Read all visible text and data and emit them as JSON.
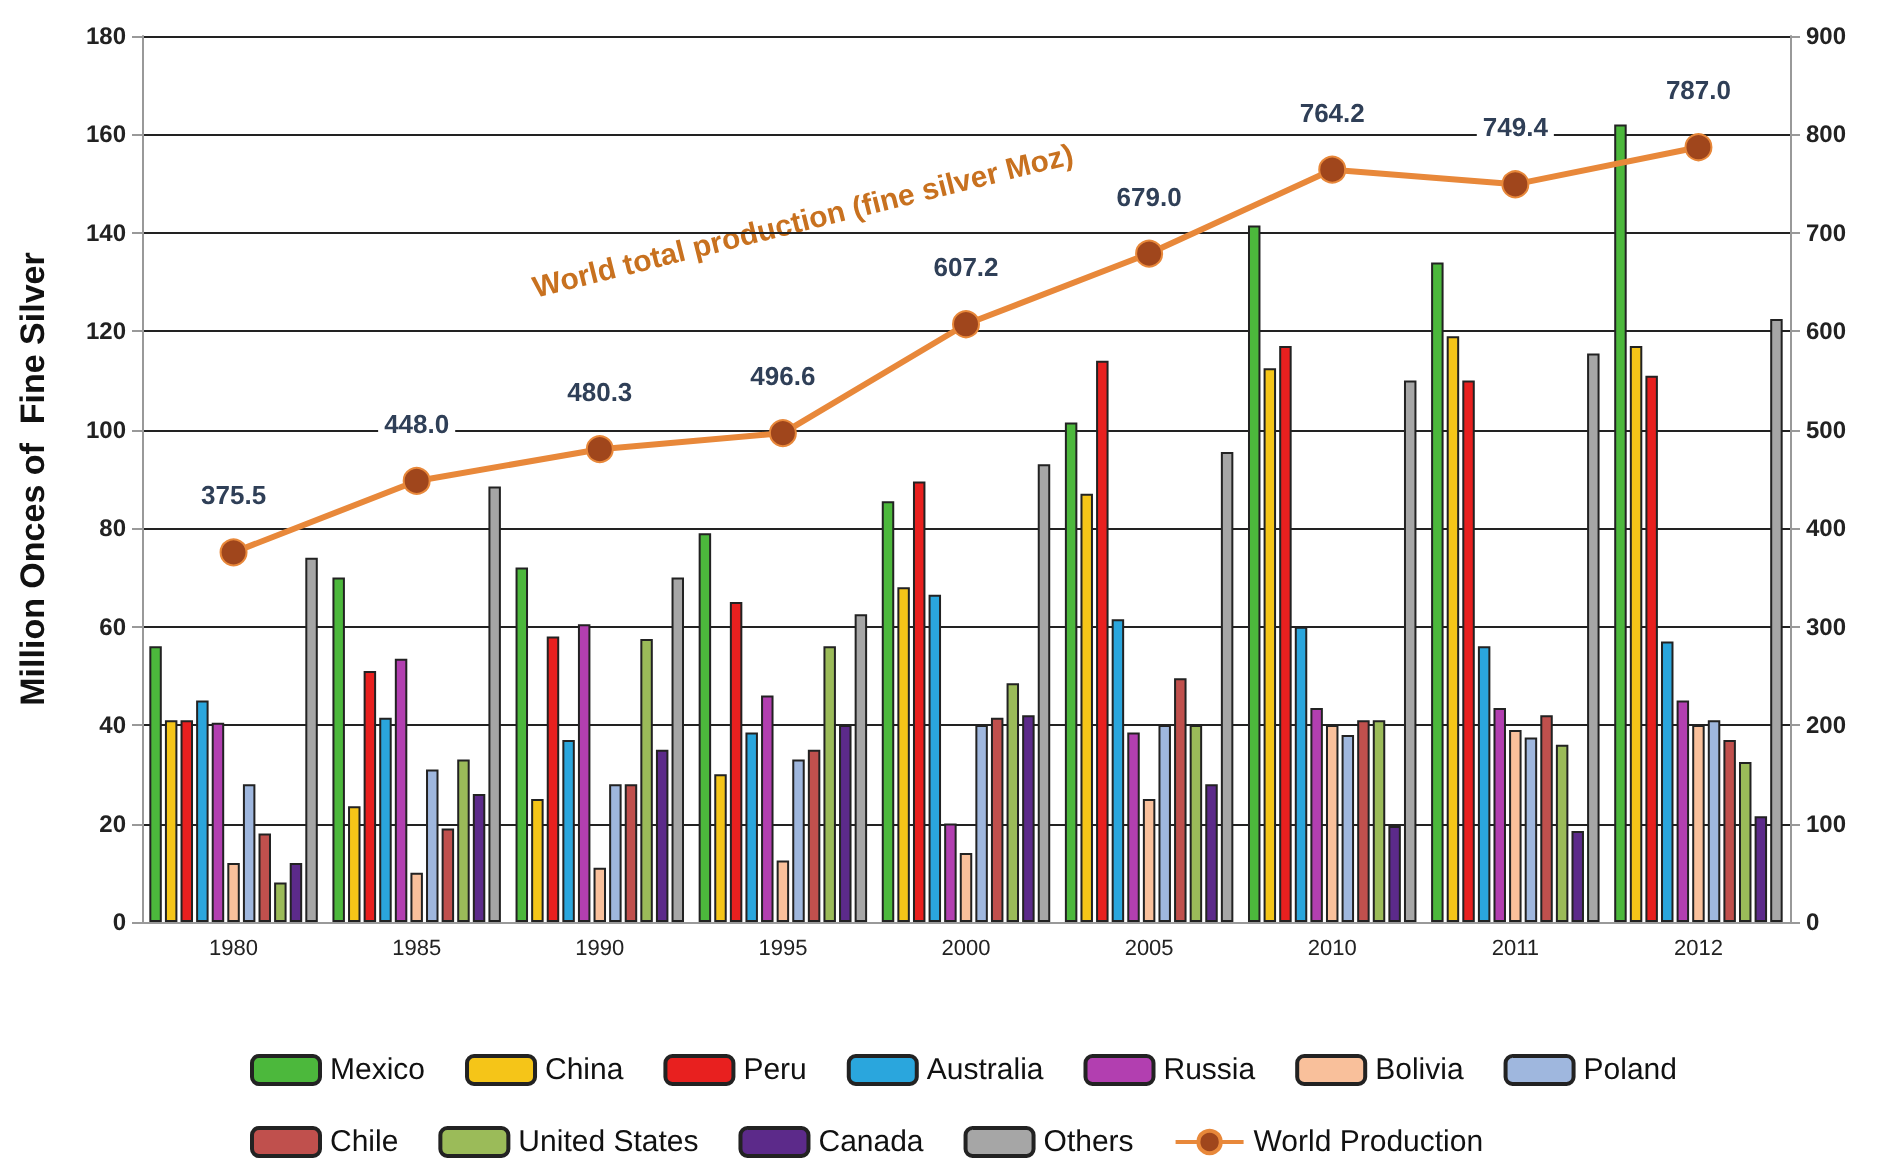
{
  "chart_data": {
    "type": "bar",
    "ylabel": "Million Onces of  Fine Silver",
    "categories": [
      "1980",
      "1985",
      "1990",
      "1995",
      "2000",
      "2005",
      "2010",
      "2011",
      "2012"
    ],
    "series": [
      {
        "name": "Mexico",
        "color": "#4cb83c",
        "values": [
          56,
          70,
          72,
          79,
          85.5,
          101.5,
          141.5,
          134,
          162
        ]
      },
      {
        "name": "China",
        "color": "#f5c518",
        "values": [
          41,
          23.5,
          25,
          30,
          68,
          87,
          112.5,
          119,
          117
        ]
      },
      {
        "name": "Peru",
        "color": "#e8201f",
        "values": [
          41,
          51,
          58,
          65,
          89.5,
          114,
          117,
          110,
          111
        ]
      },
      {
        "name": "Australia",
        "color": "#2aa6dd",
        "values": [
          45,
          41.5,
          37,
          38.5,
          66.5,
          61.5,
          60,
          56,
          57
        ]
      },
      {
        "name": "Russia",
        "color": "#b23fb0",
        "values": [
          40.5,
          53.5,
          60.5,
          46,
          20,
          38.5,
          43.5,
          43.5,
          45
        ]
      },
      {
        "name": "Bolivia",
        "color": "#f9c09b",
        "values": [
          12,
          10,
          11,
          12.5,
          14,
          25,
          40,
          39,
          40
        ]
      },
      {
        "name": "Poland",
        "color": "#9fb7de",
        "values": [
          28,
          31,
          28,
          33,
          40,
          40,
          38,
          37.5,
          41
        ]
      },
      {
        "name": "Chile",
        "color": "#c0504d",
        "values": [
          18,
          19,
          28,
          35,
          41.5,
          49.5,
          41,
          42,
          37
        ]
      },
      {
        "name": "United States",
        "color": "#9bbb59",
        "values": [
          8,
          33,
          57.5,
          56,
          48.5,
          40,
          41,
          36,
          32.5
        ]
      },
      {
        "name": "Canada",
        "color": "#5c2a8a",
        "values": [
          12,
          26,
          35,
          40,
          42,
          28,
          19.5,
          18.5,
          21.5
        ]
      },
      {
        "name": "Others",
        "color": "#a6a6a6",
        "values": [
          74,
          88.5,
          70,
          62.5,
          93,
          95.5,
          110,
          115.5,
          122.5
        ]
      },
      {
        "name": "World Production",
        "type": "line",
        "axis": "y2",
        "color": "#e8883a",
        "values": [
          375.5,
          448.0,
          480.3,
          496.6,
          607.2,
          679.0,
          764.2,
          749.4,
          787.0
        ],
        "value_labels": [
          "375.5",
          "448.0",
          "480.3",
          "496.6",
          "607.2",
          "679.0",
          "764.2",
          "749.4",
          "787.0"
        ]
      }
    ],
    "ylim": [
      0,
      180
    ],
    "yticks": [
      0,
      20,
      40,
      60,
      80,
      100,
      120,
      140,
      160,
      180
    ],
    "y2lim": [
      0,
      900
    ],
    "y2ticks": [
      0,
      100,
      200,
      300,
      400,
      500,
      600,
      700,
      800,
      900
    ],
    "annotations": [
      "World total production (fine silver Moz)"
    ],
    "grid": "y",
    "legend": "bottom",
    "marker": "circle"
  }
}
